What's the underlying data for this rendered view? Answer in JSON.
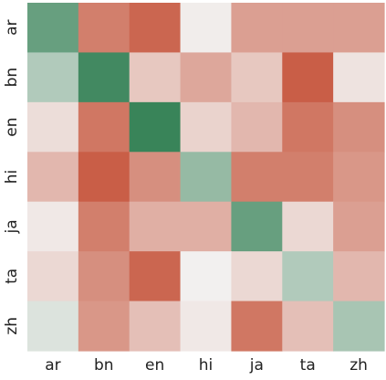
{
  "chart_data": {
    "type": "heatmap",
    "title": "",
    "xlabel": "",
    "ylabel": "",
    "x_labels": [
      "ar",
      "bn",
      "en",
      "hi",
      "ja",
      "ta",
      "zh"
    ],
    "y_labels": [
      "ar",
      "bn",
      "en",
      "hi",
      "ja",
      "ta",
      "zh"
    ],
    "color_scale": {
      "low": "#c44e34",
      "mid": "#f2f0ef",
      "high": "#398459"
    },
    "values": [
      [
        0.75,
        -0.7,
        -0.85,
        -0.02,
        -0.5,
        -0.5,
        -0.5
      ],
      [
        0.35,
        0.95,
        -0.25,
        -0.45,
        -0.25,
        -0.9,
        -0.08
      ],
      [
        -0.12,
        -0.75,
        1.0,
        -0.18,
        -0.35,
        -0.75,
        -0.6
      ],
      [
        -0.35,
        -0.9,
        -0.6,
        0.5,
        -0.7,
        -0.7,
        -0.55
      ],
      [
        -0.05,
        -0.7,
        -0.4,
        -0.4,
        0.75,
        -0.15,
        -0.5
      ],
      [
        -0.15,
        -0.6,
        -0.85,
        0.0,
        -0.15,
        0.35,
        -0.35
      ],
      [
        0.12,
        -0.55,
        -0.3,
        -0.05,
        -0.75,
        -0.3,
        0.4
      ]
    ]
  }
}
